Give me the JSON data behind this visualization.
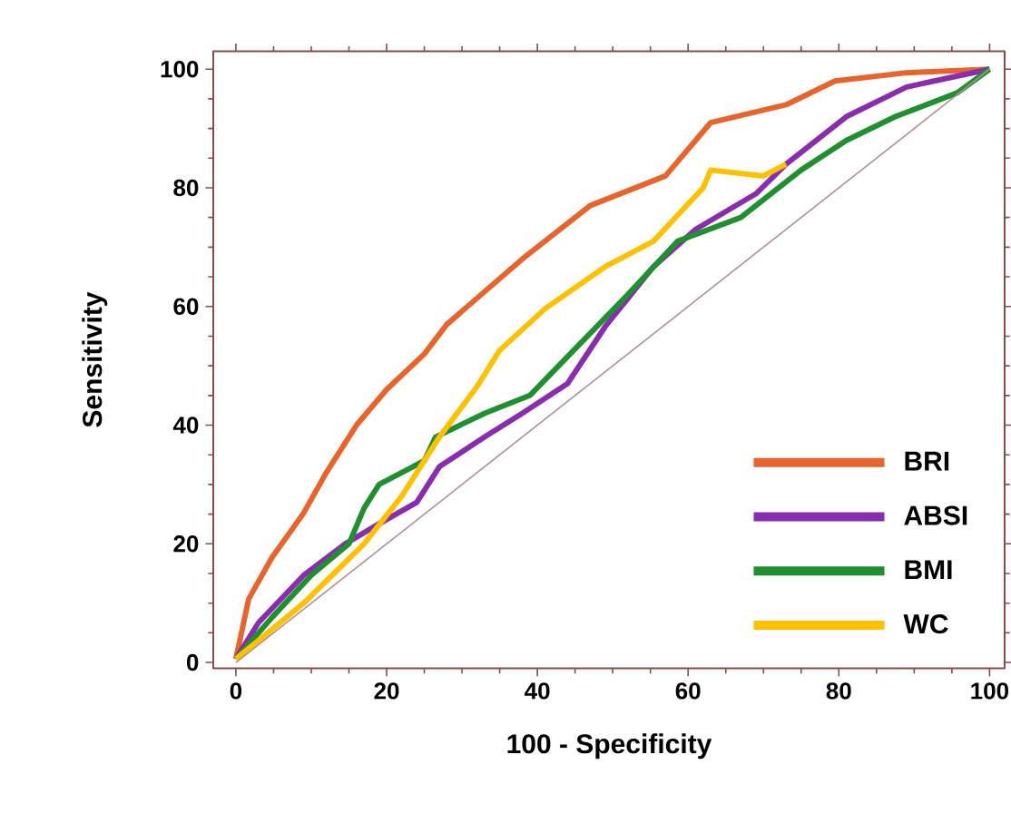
{
  "chart_data": {
    "type": "line",
    "xlabel": "100 - Specificity",
    "ylabel": "Sensitivity",
    "xlim": [
      -3,
      102
    ],
    "ylim": [
      -1,
      103
    ],
    "xticks": [
      0,
      20,
      40,
      60,
      80,
      100
    ],
    "yticks": [
      0,
      20,
      40,
      60,
      80,
      100
    ],
    "grid": false,
    "legend": "bottom right",
    "marker": "none",
    "line_style": "solid",
    "series": [
      {
        "name": "BRI",
        "color": "#e8642c",
        "x": [
          0,
          1.7,
          4.8,
          8.9,
          12,
          16,
          20,
          25,
          28,
          38,
          47,
          57,
          63,
          73,
          79.5,
          89,
          100
        ],
        "values": [
          0.6,
          10.7,
          17.7,
          25,
          32,
          40,
          46,
          52,
          57,
          68,
          77,
          82,
          91,
          94,
          98,
          99.4,
          100
        ]
      },
      {
        "name": "ABSI",
        "color": "#8a2cb0",
        "x": [
          0,
          3,
          9,
          14.5,
          18.5,
          24,
          27,
          33,
          38,
          44,
          49,
          55.4,
          61,
          69,
          73,
          81,
          89,
          100
        ],
        "values": [
          0.6,
          6.7,
          14.7,
          20,
          23,
          27,
          33,
          38,
          42,
          47,
          56.6,
          66.7,
          73,
          79,
          84,
          92,
          97,
          100
        ]
      },
      {
        "name": "BMI",
        "color": "#1f8f2f",
        "x": [
          0,
          4.8,
          10,
          15,
          17,
          19,
          25,
          26.5,
          33,
          39,
          52,
          58.6,
          67,
          75,
          81,
          87.5,
          95.7,
          100
        ],
        "values": [
          0.6,
          7.6,
          14.7,
          20,
          26,
          30,
          34,
          38,
          42,
          45,
          62,
          71,
          75,
          83,
          88,
          92,
          96,
          100
        ]
      },
      {
        "name": "WC",
        "color": "#ffc000",
        "x": [
          0,
          3,
          9,
          13,
          17,
          22,
          27,
          32,
          35,
          41,
          49,
          55.4,
          62,
          63,
          70,
          73
        ],
        "values": [
          0.6,
          3.7,
          10,
          15,
          20,
          28,
          38,
          46.5,
          52.6,
          59.6,
          66.7,
          71,
          80,
          83,
          82,
          84
        ]
      },
      {
        "color": "#b09090",
        "x": [
          0,
          100
        ],
        "values": [
          0,
          100
        ]
      }
    ]
  }
}
